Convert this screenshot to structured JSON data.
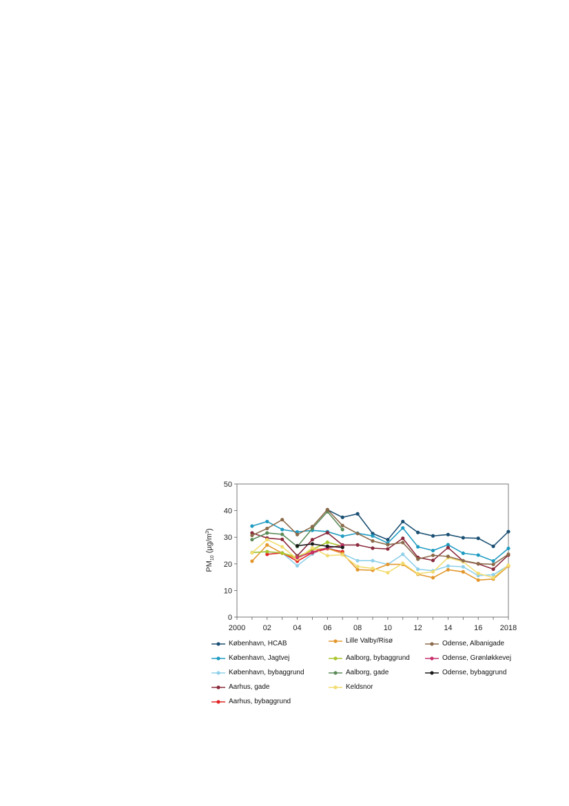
{
  "chart_data": {
    "type": "line",
    "ylabel_main": "PM",
    "ylabel_sub": "10",
    "ylabel_unit": " (µg/m",
    "ylabel_sup": "3",
    "ylabel_close": ")",
    "ylim": [
      0,
      50
    ],
    "yticks": [
      "0",
      "10",
      "20",
      "30",
      "40",
      "50"
    ],
    "xlim": [
      2000,
      2018
    ],
    "xticks": [
      {
        "x": 2000,
        "label": "2000"
      },
      {
        "x": 2002,
        "label": "02"
      },
      {
        "x": 2004,
        "label": "04"
      },
      {
        "x": 2006,
        "label": "06"
      },
      {
        "x": 2008,
        "label": "08"
      },
      {
        "x": 2010,
        "label": "10"
      },
      {
        "x": 2012,
        "label": "12"
      },
      {
        "x": 2014,
        "label": "14"
      },
      {
        "x": 2016,
        "label": "16"
      },
      {
        "x": 2018,
        "label": "2018"
      }
    ],
    "grid": false,
    "legend_position": "bottom",
    "series": [
      {
        "name": "København, HCAB",
        "color": "#1a4f73",
        "x": [
          2006,
          2007,
          2008,
          2009,
          2010,
          2011,
          2012,
          2013,
          2014,
          2015,
          2016,
          2017,
          2018
        ],
        "y": [
          40.3,
          37.5,
          38.8,
          31.4,
          29.1,
          35.9,
          31.8,
          30.5,
          31.0,
          29.8,
          29.6,
          26.6,
          32.1
        ]
      },
      {
        "name": "København, Jagtvej",
        "color": "#1f9bc2",
        "x": [
          2001,
          2002,
          2003,
          2004,
          2005,
          2006,
          2007,
          2008,
          2009,
          2010,
          2011,
          2012,
          2013,
          2014,
          2015,
          2016,
          2017,
          2018
        ],
        "y": [
          34.2,
          35.9,
          32.9,
          32.0,
          32.6,
          32.1,
          30.4,
          31.5,
          30.5,
          27.8,
          33.5,
          26.4,
          25.0,
          27.2,
          24.0,
          23.3,
          21.1,
          25.8
        ]
      },
      {
        "name": "København, bybaggrund",
        "color": "#8ed0ea",
        "x": [
          2001,
          2002,
          2003,
          2004,
          2005,
          2006,
          2007,
          2008,
          2009,
          2010,
          2011,
          2012,
          2013,
          2014,
          2015,
          2016,
          2017,
          2018
        ],
        "y": [
          24.3,
          24.5,
          24.1,
          19.3,
          23.7,
          26.4,
          23.8,
          21.2,
          21.2,
          19.8,
          23.6,
          18.0,
          17.4,
          19.2,
          18.9,
          15.6,
          15.9,
          19.4
        ]
      },
      {
        "name": "Aarhus, gade",
        "color": "#8a2a3c",
        "x": [
          2001,
          2002,
          2003,
          2004,
          2005,
          2006,
          2007,
          2008,
          2009,
          2010,
          2011,
          2012,
          2013,
          2014,
          2015,
          2016,
          2017,
          2018
        ],
        "y": [
          31.6,
          29.7,
          29.2,
          23.0,
          29.1,
          31.7,
          27.1,
          27.1,
          25.9,
          25.6,
          29.6,
          22.4,
          21.3,
          26.1,
          21.1,
          20.0,
          18.0,
          23.3
        ]
      },
      {
        "name": "Aarhus, bybaggrund",
        "color": "#e22323",
        "x": [
          2002,
          2003,
          2004,
          2005,
          2006,
          2007
        ],
        "y": [
          23.6,
          24.1,
          21.0,
          24.2,
          25.7,
          24.6
        ]
      },
      {
        "name": "Lille Valby/Risø",
        "color": "#e3972b",
        "x": [
          2001,
          2002,
          2003,
          2004,
          2005,
          2006,
          2007,
          2008,
          2009,
          2010,
          2011,
          2012,
          2013,
          2014,
          2015,
          2016,
          2017,
          2018
        ],
        "y": [
          21.0,
          27.1,
          24.0,
          21.9,
          25.3,
          25.8,
          23.9,
          17.8,
          17.6,
          19.8,
          19.8,
          16.1,
          14.8,
          17.8,
          17.0,
          13.9,
          14.3,
          19.2
        ]
      },
      {
        "name": "Aalborg, bybaggrund",
        "color": "#a8c62d",
        "x": [
          2001,
          2002,
          2003,
          2004,
          2005,
          2006,
          2007
        ],
        "y": [
          24.2,
          24.6,
          24.1,
          22.5,
          25.4,
          28.1,
          26.6
        ]
      },
      {
        "name": "Aalborg, gade",
        "color": "#5a8a58",
        "x": [
          2001,
          2002,
          2003,
          2004,
          2005,
          2006,
          2007
        ],
        "y": [
          29.1,
          31.6,
          31.1,
          26.5,
          33.3,
          39.6,
          32.9
        ]
      },
      {
        "name": "Keldsnor",
        "color": "#f2dc6f",
        "x": [
          2001,
          2002,
          2003,
          2004,
          2005,
          2006,
          2007,
          2008,
          2009,
          2010,
          2011,
          2012,
          2013,
          2014,
          2015,
          2016,
          2017,
          2018
        ],
        "y": [
          24.2,
          29.1,
          26.4,
          21.8,
          26.0,
          23.1,
          23.4,
          19.0,
          18.3,
          16.7,
          20.2,
          16.3,
          17.0,
          22.3,
          20.8,
          16.4,
          14.8,
          19.5
        ]
      },
      {
        "name": "Odense, Albanigade",
        "color": "#8b6a4a",
        "x": [
          2001,
          2002,
          2003,
          2004,
          2005,
          2006,
          2007,
          2008,
          2009,
          2010,
          2011,
          2012,
          2013,
          2014,
          2015,
          2016,
          2017,
          2018
        ],
        "y": [
          30.7,
          33.3,
          36.6,
          31.0,
          34.0,
          40.4,
          34.4,
          31.4,
          28.6,
          27.2,
          28.0,
          21.8,
          23.2,
          22.8,
          21.2,
          20.1,
          19.8,
          23.6
        ]
      },
      {
        "name": "Odense, Grønløkkevej",
        "color": "#c7316b",
        "x": [
          2004,
          2005,
          2006,
          2007
        ],
        "y": [
          22.4,
          24.4,
          26.0,
          26.9
        ]
      },
      {
        "name": "Odense, bybaggrund",
        "color": "#1a1a1a",
        "x": [
          2004,
          2005,
          2006,
          2007
        ],
        "y": [
          26.8,
          27.5,
          26.6,
          26.2
        ]
      }
    ]
  }
}
